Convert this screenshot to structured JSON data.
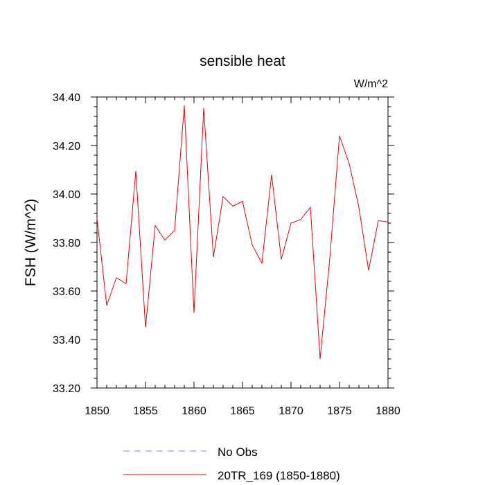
{
  "chart_data": {
    "type": "line",
    "title": "sensible heat",
    "units_label": "W/m^2",
    "xlabel": "",
    "ylabel": "FSH  (W/m^2)",
    "xlim": [
      1850,
      1880
    ],
    "ylim": [
      33.2,
      34.4
    ],
    "x_ticks": [
      1850,
      1855,
      1860,
      1865,
      1870,
      1875,
      1880
    ],
    "x_tick_labels": [
      "1850",
      "1855",
      "1860",
      "1865",
      "1870",
      "1875",
      "1880"
    ],
    "y_ticks": [
      33.2,
      33.4,
      33.6,
      33.8,
      34.0,
      34.2,
      34.4
    ],
    "y_tick_labels": [
      "33.20",
      "33.40",
      "33.60",
      "33.80",
      "34.00",
      "34.20",
      "34.40"
    ],
    "grid": false,
    "series": [
      {
        "name": "20TR_169 (1850-1880)",
        "color": "#e8000b",
        "x": [
          1850,
          1851,
          1852,
          1853,
          1854,
          1855,
          1856,
          1857,
          1858,
          1859,
          1860,
          1861,
          1862,
          1863,
          1864,
          1865,
          1866,
          1867,
          1868,
          1869,
          1870,
          1871,
          1872,
          1873,
          1874,
          1875,
          1876,
          1877,
          1878,
          1879,
          1880
        ],
        "values": [
          33.9,
          33.54,
          33.655,
          33.63,
          34.095,
          33.45,
          33.87,
          33.81,
          33.85,
          34.365,
          33.51,
          34.355,
          33.74,
          33.99,
          33.95,
          33.97,
          33.79,
          33.715,
          34.08,
          33.73,
          33.88,
          33.895,
          33.945,
          33.32,
          33.735,
          34.24,
          34.125,
          33.945,
          33.685,
          33.89,
          33.885
        ]
      }
    ]
  },
  "legend": {
    "items": [
      {
        "label": "No Obs",
        "color": "#8080ff",
        "style": "dashed"
      },
      {
        "label": "20TR_169 (1850-1880)",
        "color": "#e8000b",
        "style": "solid"
      }
    ]
  }
}
